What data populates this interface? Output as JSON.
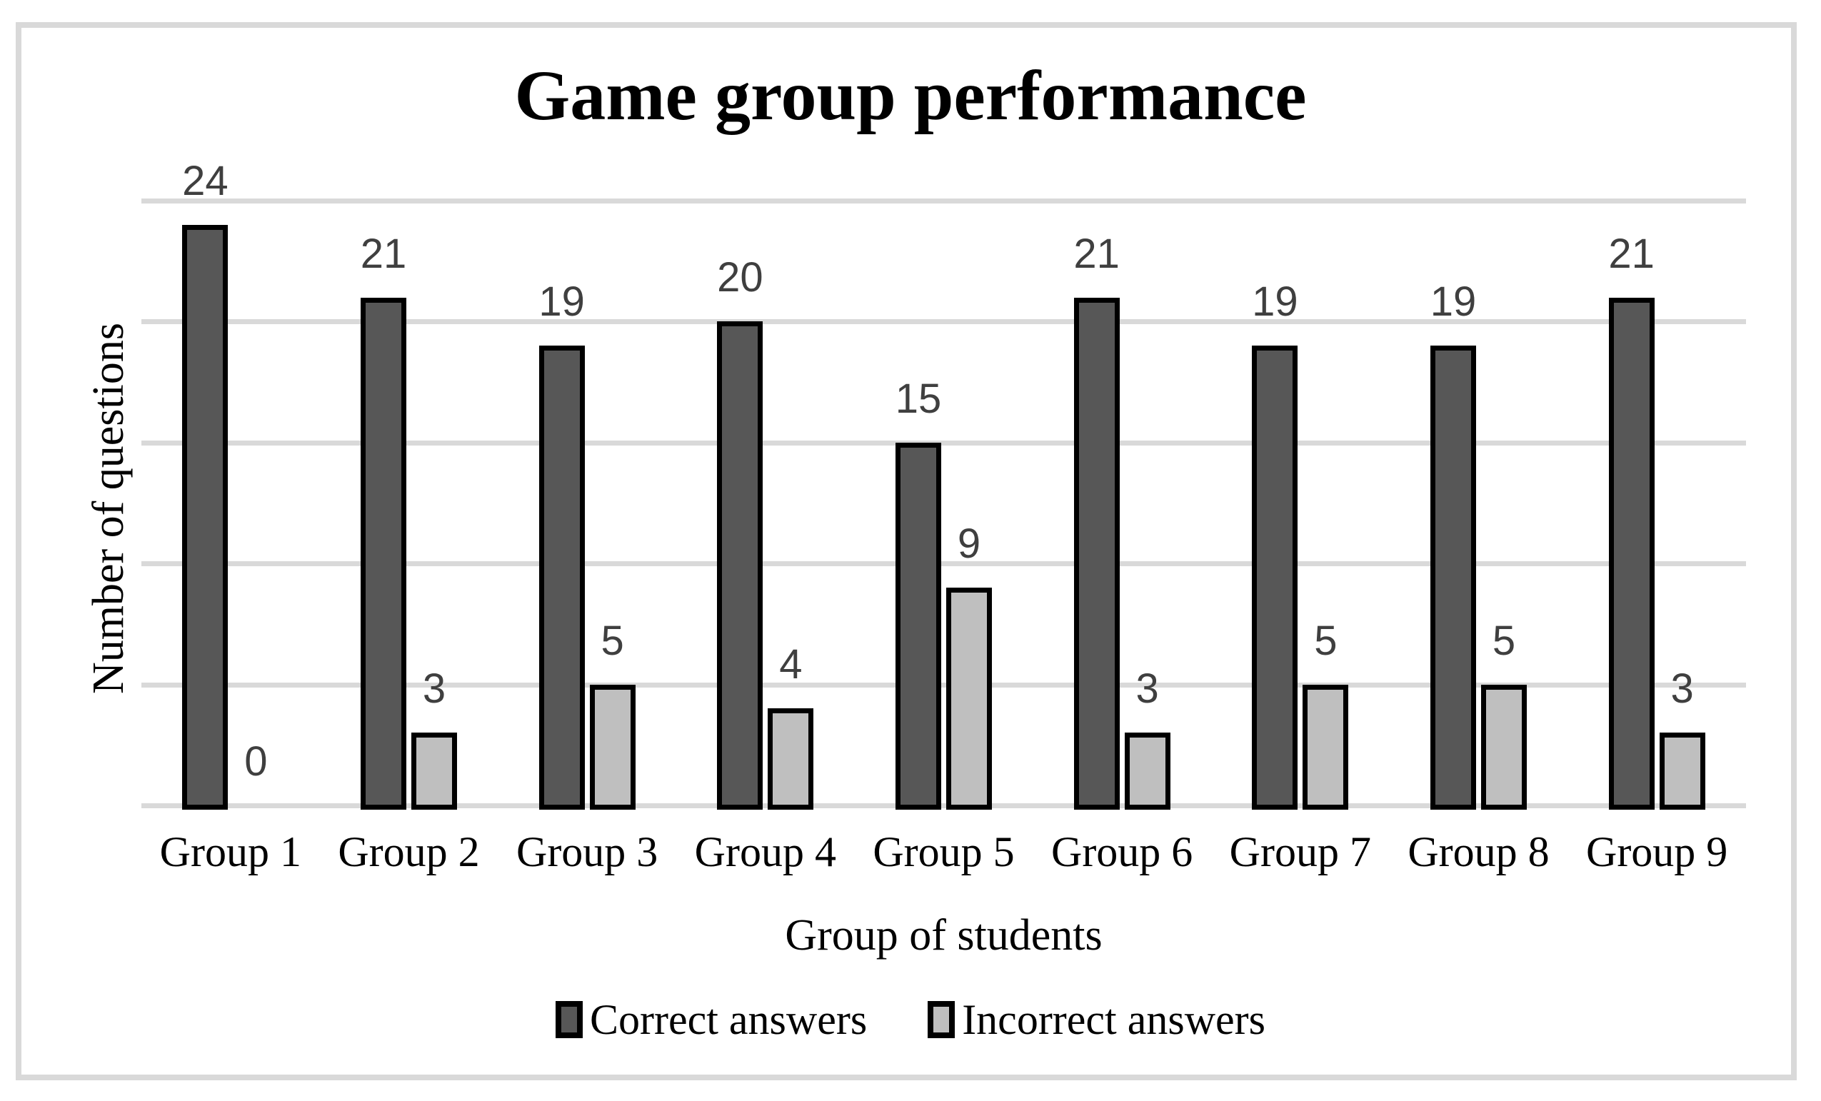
{
  "frame_color": "#d9d9d9",
  "chart_data": {
    "type": "bar",
    "title": "Game group performance",
    "xlabel": "Group of students",
    "ylabel": "Number of questions",
    "categories": [
      "Group 1",
      "Group 2",
      "Group 3",
      "Group 4",
      "Group 5",
      "Group 6",
      "Group 7",
      "Group 8",
      "Group 9"
    ],
    "series": [
      {
        "name": "Correct answers",
        "color": "#575757",
        "values": [
          24,
          21,
          19,
          20,
          15,
          21,
          19,
          19,
          21
        ]
      },
      {
        "name": "Incorrect answers",
        "color": "#bfbfbf",
        "values": [
          0,
          3,
          5,
          4,
          9,
          3,
          5,
          5,
          3
        ]
      }
    ],
    "ylim": [
      0,
      25
    ],
    "gridline_step": 5,
    "grid": "horizontal-only",
    "y_tick_labels_visible": false,
    "data_labels": true,
    "data_label_color": "#3f3f3f",
    "bar_border_color": "#000000",
    "gridline_color": "#d9d9d9",
    "legend_position": "bottom"
  }
}
